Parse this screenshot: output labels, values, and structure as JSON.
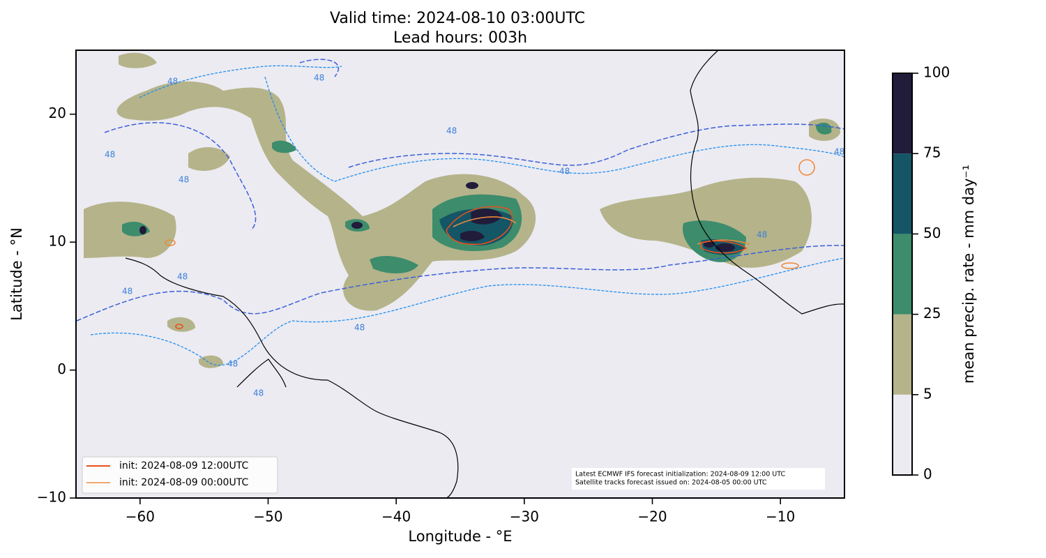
{
  "chart_data": {
    "type": "map",
    "title": "Valid time: 2024-08-10 03:00UTC",
    "subtitle": "Lead hours: 003h",
    "x_label": "Longitude - °E",
    "y_label": "Latitude - °N",
    "xlim": [
      -65,
      -5
    ],
    "ylim": [
      -10,
      25
    ],
    "xticks": [
      {
        "value": -60,
        "label": "−60"
      },
      {
        "value": -50,
        "label": "−50"
      },
      {
        "value": -40,
        "label": "−40"
      },
      {
        "value": -30,
        "label": "−30"
      },
      {
        "value": -20,
        "label": "−20"
      },
      {
        "value": -10,
        "label": "−10"
      }
    ],
    "yticks": [
      {
        "value": -10,
        "label": "−10"
      },
      0,
      10,
      20
    ],
    "series": [
      {
        "name": "init: 2024-08-09 12:00UTC",
        "color": "#e8501c"
      },
      {
        "name": "init: 2024-08-09 00:00UTC",
        "color": "#f08a3c"
      }
    ],
    "contour_label": "48",
    "annotation": [
      "Latest ECMWF IFS forecast initialization: 2024-08-09 12:00 UTC",
      "Satellite tracks forecast issued on: 2024-08-05 00:00 UTC"
    ],
    "colorbar": {
      "label": "mean precip. rate - mm day⁻¹",
      "bounds": [
        0,
        5,
        25,
        50,
        75,
        100
      ],
      "colors": [
        "#ecebf2",
        "#b5b38a",
        "#3d8c6c",
        "#145566",
        "#201c3a"
      ]
    }
  }
}
